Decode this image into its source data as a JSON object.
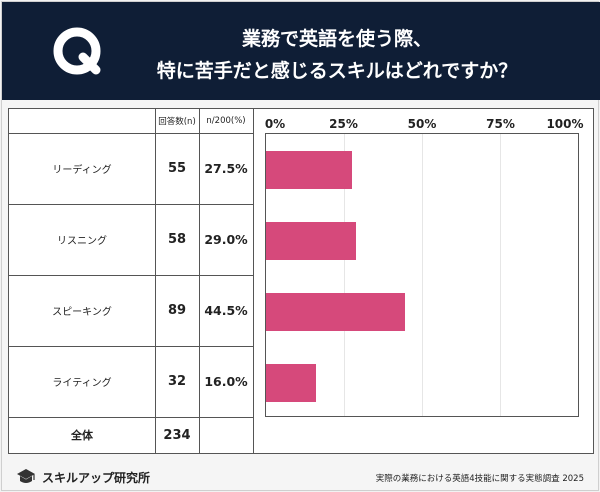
{
  "header": {
    "q_letter": "Q",
    "title_line1": "業務で英語を使う際、",
    "title_line2": "特に苦手だと感じるスキルはどれですか？"
  },
  "table": {
    "col_headers": [
      "回答数(n)",
      "n/200(%)"
    ],
    "rows": [
      {
        "label": "リーディング",
        "count": "55",
        "percent": "27.5%"
      },
      {
        "label": "リスニング",
        "count": "58",
        "percent": "29.0%"
      },
      {
        "label": "スピーキング",
        "count": "89",
        "percent": "44.5%"
      },
      {
        "label": "ライティング",
        "count": "32",
        "percent": "16.0%"
      }
    ],
    "total": {
      "label": "全体",
      "count": "234"
    }
  },
  "chart_data": {
    "type": "bar",
    "orientation": "horizontal",
    "categories": [
      "リーディング",
      "リスニング",
      "スピーキング",
      "ライティング"
    ],
    "values": [
      27.5,
      29.0,
      44.5,
      16.0
    ],
    "xlim": [
      0,
      100
    ],
    "x_tick_labels": [
      "0%",
      "25%",
      "50%",
      "75%",
      "100%"
    ],
    "bar_color": "#d6497b",
    "grid": true
  },
  "footer": {
    "brand": "スキルアップ研究所",
    "source": "実際の業務における英語4技能に関する実態調査 2025"
  },
  "colors": {
    "header_bg": "#0f1e36",
    "accent": "#d6497b"
  }
}
